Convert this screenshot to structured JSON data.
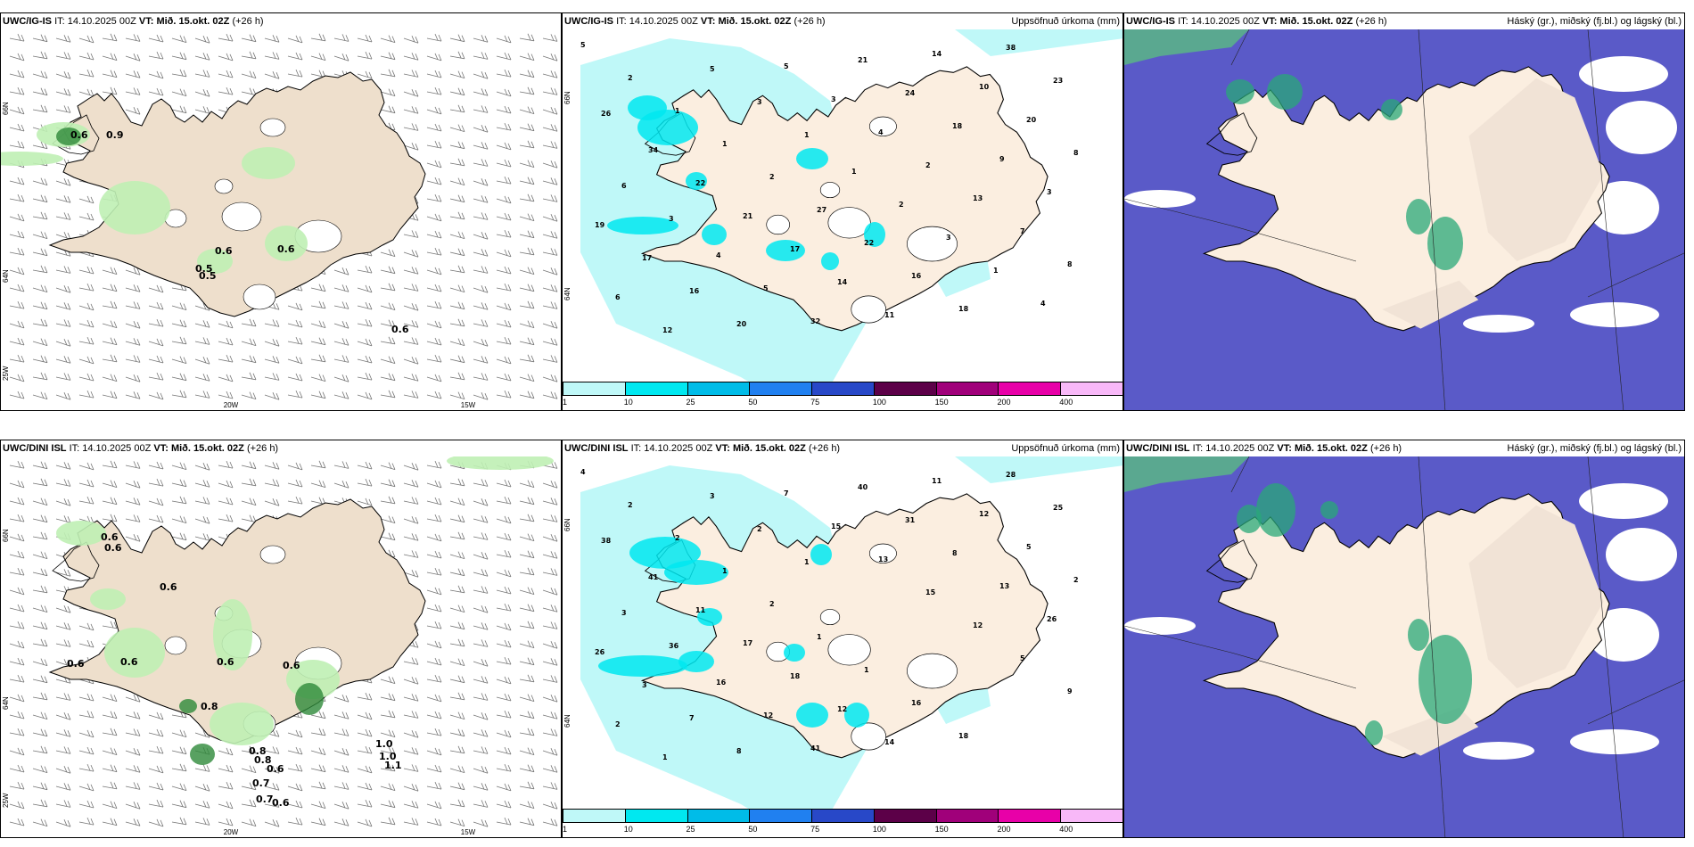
{
  "panels": [
    {
      "id": "p1",
      "model": "UWC/IG-IS",
      "it_label": "IT:",
      "it": "14.10.2025 00Z",
      "vt_label": "VT:",
      "vt": "Mið. 15.okt. 02Z",
      "lead": "(+26 h)",
      "right_title": "",
      "kind": "wind",
      "labels": [
        "0.6",
        "0.9",
        "0.6",
        "0.6",
        "0.5",
        "0.5",
        "0.6"
      ],
      "axis_labels": {
        "bottom": [
          "20W",
          "15W"
        ],
        "left": [
          "66N",
          "64N",
          "25W"
        ]
      }
    },
    {
      "id": "p2",
      "model": "UWC/IG-IS",
      "it_label": "IT:",
      "it": "14.10.2025 00Z",
      "vt_label": "VT:",
      "vt": "Mið. 15.okt. 02Z",
      "lead": "(+26 h)",
      "right_title": "Uppsöfnuð úrkoma (mm)",
      "kind": "precip",
      "labels": [
        "5",
        "2",
        "1",
        "1",
        "2",
        "27",
        "22",
        "16",
        "18",
        "38",
        "23",
        "26",
        "34",
        "22",
        "21",
        "17",
        "14",
        "11",
        "14",
        "10",
        "20",
        "8",
        "6",
        "3",
        "4",
        "5",
        "32",
        "21",
        "24",
        "18",
        "9",
        "3",
        "19",
        "17",
        "16",
        "20",
        "5",
        "3",
        "4",
        "2",
        "13",
        "7",
        "8",
        "6",
        "12",
        "5",
        "3",
        "1",
        "1",
        "2",
        "3",
        "1",
        "4"
      ],
      "axis_labels": {
        "left": [
          "66N",
          "64N"
        ]
      }
    },
    {
      "id": "p3",
      "model": "UWC/IG-IS",
      "it_label": "IT:",
      "it": "14.10.2025 00Z",
      "vt_label": "VT:",
      "vt": "Mið. 15.okt. 02Z",
      "lead": "(+26 h)",
      "right_title": "Háský (gr.), miðský (fj.bl.) og lágský (bl.)",
      "kind": "cloud",
      "labels": []
    },
    {
      "id": "p4",
      "model": "UWC/DINI ISL",
      "it_label": "IT:",
      "it": "14.10.2025 00Z",
      "vt_label": "VT:",
      "vt": "Mið. 15.okt. 02Z",
      "lead": "(+26 h)",
      "right_title": "",
      "kind": "wind",
      "labels": [
        "0.6",
        "0.6",
        "0.6",
        "0.6",
        "0.6",
        "0.6",
        "0.6",
        "0.8",
        "1.0",
        "1.0",
        "1.1",
        "0.8",
        "0.8",
        "0.6",
        "0.7",
        "0.7",
        "0.6"
      ],
      "axis_labels": {
        "bottom": [
          "20W",
          "15W"
        ],
        "left": [
          "66N",
          "64N",
          "25W"
        ]
      }
    },
    {
      "id": "p5",
      "model": "UWC/DINI ISL",
      "it_label": "IT:",
      "it": "14.10.2025 00Z",
      "vt_label": "VT:",
      "vt": "Mið. 15.okt. 02Z",
      "lead": "(+26 h)",
      "right_title": "Uppsöfnuð úrkoma (mm)",
      "kind": "precip",
      "labels": [
        "4",
        "2",
        "2",
        "1",
        "2",
        "1",
        "1",
        "16",
        "18",
        "28",
        "25",
        "38",
        "41",
        "11",
        "17",
        "18",
        "12",
        "14",
        "11",
        "12",
        "5",
        "2",
        "3",
        "36",
        "16",
        "12",
        "41",
        "40",
        "31",
        "8",
        "13",
        "26",
        "26",
        "3",
        "7",
        "8",
        "7",
        "15",
        "13",
        "15",
        "12",
        "5",
        "9",
        "2",
        "1",
        "3",
        "2",
        "1"
      ],
      "axis_labels": {
        "left": [
          "66N",
          "64N"
        ]
      }
    },
    {
      "id": "p6",
      "model": "UWC/DINI ISL",
      "it_label": "IT:",
      "it": "14.10.2025 00Z",
      "vt_label": "VT:",
      "vt": "Mið. 15.okt. 02Z",
      "lead": "(+26 h)",
      "right_title": "Háský (gr.), miðský (fj.bl.) og lágský (bl.)",
      "kind": "cloud",
      "labels": []
    }
  ],
  "colorbar": {
    "colors": [
      "#bff8f8",
      "#00e8f0",
      "#00bce8",
      "#2080f0",
      "#2848c8",
      "#5c0048",
      "#a0007a",
      "#e800a8",
      "#f8b8f8"
    ],
    "labels": [
      "1",
      "10",
      "25",
      "50",
      "75",
      "100",
      "150",
      "200",
      "400"
    ]
  }
}
